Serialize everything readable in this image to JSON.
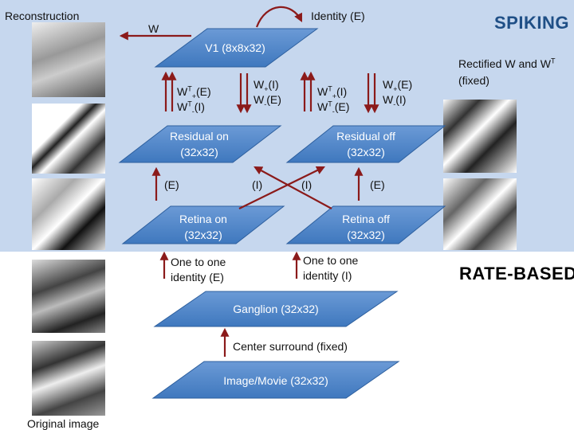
{
  "sections": {
    "spiking": "SPIKING",
    "rate_based": "RATE-BASED"
  },
  "labels": {
    "reconstruction": "Reconstruction",
    "original_image": "Original image",
    "w_arrow": "W",
    "identity_e": "Identity (E)",
    "rectified_line1": "Rectified W and W",
    "rectified_sup": "T",
    "rectified_line2": "(fixed)",
    "e1": "(E)",
    "i1": "(I)",
    "i2": "(I)",
    "e2": "(E)",
    "one_to_one_e": [
      "One to one",
      "identity (E)"
    ],
    "one_to_one_i": [
      "One to one",
      "identity (I)"
    ],
    "center_surround": "Center surround (fixed)"
  },
  "weights": {
    "left_up": {
      "w1": "W",
      "s1": "T",
      "b1": "+",
      "t1": "(E)",
      "w2": "W",
      "s2": "T",
      "b2": "-",
      "t2": "(I)"
    },
    "left_down": {
      "w1": "W",
      "b1": "+",
      "t1": "(I)",
      "w2": "W",
      "b2": "-",
      "t2": "(E)"
    },
    "right_up": {
      "w1": "W",
      "s1": "T",
      "b1": "+",
      "t1": "(I)",
      "w2": "W",
      "s2": "T",
      "b2": "-",
      "t2": "(E)"
    },
    "right_down": {
      "w1": "W",
      "b1": "+",
      "t1": "(E)",
      "w2": "W",
      "b2": "-",
      "t2": "(I)"
    }
  },
  "nodes": {
    "v1": "V1 (8x8x32)",
    "residual_on": [
      "Residual on",
      "(32x32)"
    ],
    "residual_off": [
      "Residual off",
      "(32x32)"
    ],
    "retina_on": [
      "Retina on",
      "(32x32)"
    ],
    "retina_off": [
      "Retina off",
      "(32x32)"
    ],
    "ganglion": "Ganglion (32x32)",
    "image_movie": "Image/Movie (32x32)"
  },
  "colors": {
    "spiking_bg": "#c6d7ee",
    "node_fill": "#4f86c9",
    "arrow": "#8b1a1a",
    "spiking_text": "#1f4f86"
  }
}
